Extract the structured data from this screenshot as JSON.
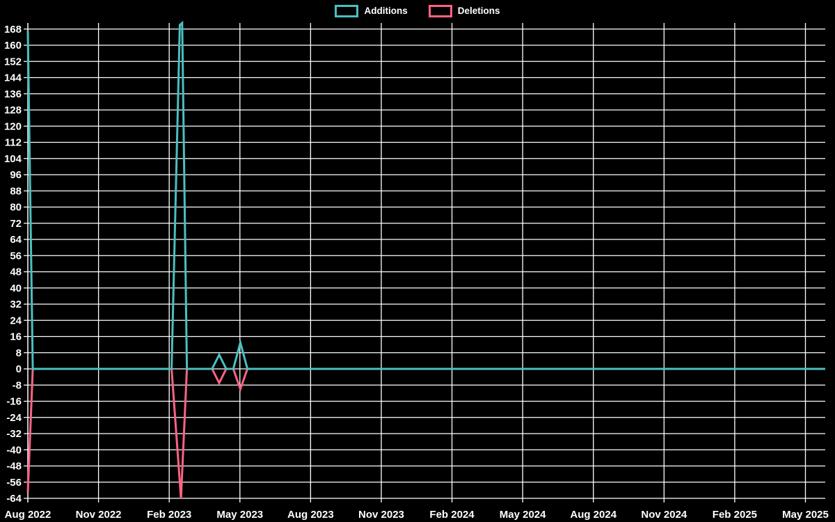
{
  "legend": {
    "items": [
      {
        "id": "additions",
        "label": "Additions",
        "color": "#4bc0c0"
      },
      {
        "id": "deletions",
        "label": "Deletions",
        "color": "#ff6384"
      }
    ]
  },
  "chart_data": {
    "type": "line",
    "title": "",
    "background_color": "#000000",
    "grid_color": "#ffffff",
    "text_color": "#ffffff",
    "grid": true,
    "legend_position": "top",
    "x_tick_labels": [
      "Aug 2022",
      "Nov 2022",
      "Feb 2023",
      "May 2023",
      "Aug 2023",
      "Nov 2023",
      "Feb 2024",
      "May 2024",
      "Aug 2024",
      "Nov 2024",
      "Feb 2025",
      "May 2025"
    ],
    "y_tick_labels": [
      "168",
      "160",
      "152",
      "144",
      "136",
      "128",
      "120",
      "112",
      "104",
      "96",
      "88",
      "80",
      "72",
      "64",
      "56",
      "48",
      "40",
      "32",
      "24",
      "16",
      "8",
      "0",
      "-8",
      "-16",
      "-24",
      "-32",
      "-40",
      "-48",
      "-56",
      "-64"
    ],
    "y_tick_values": [
      168,
      160,
      152,
      144,
      136,
      128,
      120,
      112,
      104,
      96,
      88,
      80,
      72,
      64,
      56,
      48,
      40,
      32,
      24,
      16,
      8,
      0,
      -8,
      -16,
      -24,
      -32,
      -40,
      -48,
      -56,
      -64
    ],
    "y_tick_step": 8,
    "ylim": [
      -64,
      171
    ],
    "x_unit": "months_since_Aug_2022",
    "xlim": [
      0,
      33.84
    ],
    "x_months_per_tick": 3,
    "series": [
      {
        "name": "Additions",
        "color": "#4bc0c0",
        "points": [
          [
            0,
            167
          ],
          [
            0.21,
            0
          ],
          [
            6.1,
            0
          ],
          [
            6.45,
            170
          ],
          [
            6.55,
            171
          ],
          [
            6.75,
            0
          ],
          [
            7.82,
            0
          ],
          [
            8.12,
            7
          ],
          [
            8.42,
            0
          ],
          [
            8.72,
            0
          ],
          [
            9.02,
            13
          ],
          [
            9.32,
            0
          ],
          [
            33.84,
            0
          ]
        ]
      },
      {
        "name": "Deletions",
        "color": "#ff6384",
        "points": [
          [
            0,
            -61
          ],
          [
            0.21,
            0
          ],
          [
            6.1,
            0
          ],
          [
            6.5,
            -64
          ],
          [
            6.75,
            0
          ],
          [
            7.82,
            0
          ],
          [
            8.12,
            -7
          ],
          [
            8.42,
            0
          ],
          [
            8.72,
            0
          ],
          [
            9.02,
            -10
          ],
          [
            9.32,
            0
          ],
          [
            33.84,
            0
          ]
        ]
      }
    ],
    "key_events": [
      {
        "period": "Aug 2022 (chart start)",
        "additions": 167,
        "deletions": -61
      },
      {
        "period": "mid Feb 2023",
        "additions": 171,
        "deletions": -64
      },
      {
        "period": "mid Apr 2023",
        "additions": 7,
        "deletions": -7
      },
      {
        "period": "early May 2023",
        "additions": 13,
        "deletions": -10
      }
    ]
  }
}
